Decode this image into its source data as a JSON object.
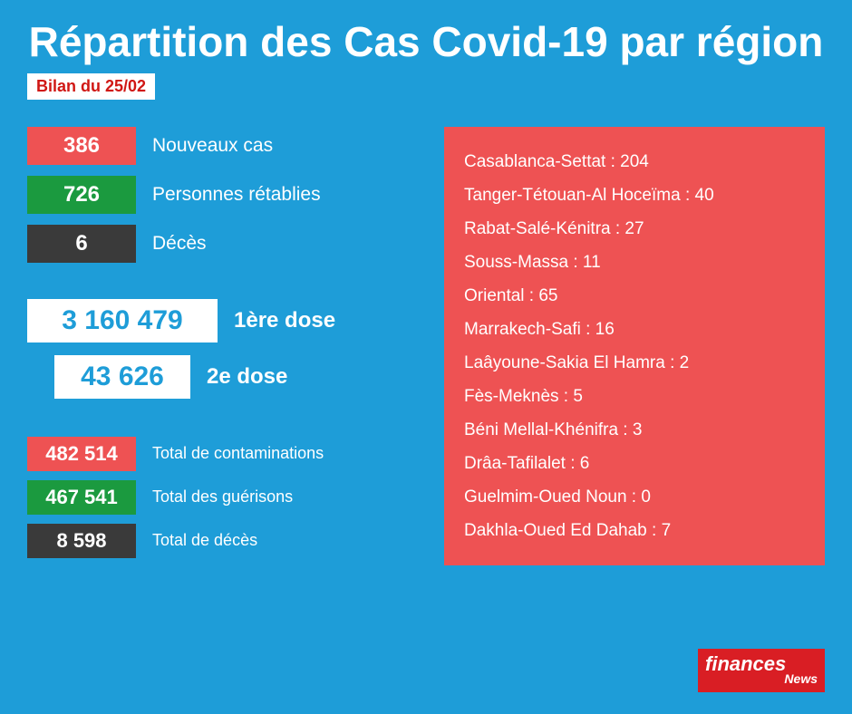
{
  "colors": {
    "background": "#1e9dd8",
    "white": "#ffffff",
    "red": "#ee5253",
    "green": "#1b9a3f",
    "dark": "#3a3a3a",
    "date_text": "#d01714",
    "logo_bg": "#d91e24"
  },
  "title": "Répartition des Cas Covid-19 par région",
  "date_badge": "Bilan du 25/02",
  "daily_stats": [
    {
      "value": "386",
      "label": "Nouveaux cas",
      "bg": "#ee5253",
      "fg": "#ffffff"
    },
    {
      "value": "726",
      "label": "Personnes rétablies",
      "bg": "#1b9a3f",
      "fg": "#ffffff"
    },
    {
      "value": "6",
      "label": "Décès",
      "bg": "#3a3a3a",
      "fg": "#ffffff"
    }
  ],
  "doses": [
    {
      "value": "3 160 479",
      "label": "1ère dose",
      "value_color": "#1e9dd8"
    },
    {
      "value": "43 626",
      "label": "2e dose",
      "value_color": "#1e9dd8"
    }
  ],
  "totals": [
    {
      "value": "482 514",
      "label": "Total de contaminations",
      "bg": "#ee5253",
      "fg": "#ffffff"
    },
    {
      "value": "467 541",
      "label": "Total des guérisons",
      "bg": "#1b9a3f",
      "fg": "#ffffff"
    },
    {
      "value": "8 598",
      "label": "Total de décès",
      "bg": "#3a3a3a",
      "fg": "#ffffff"
    }
  ],
  "regions": [
    {
      "name": "Casablanca-Settat",
      "value": "204"
    },
    {
      "name": "Tanger-Tétouan-Al Hoceïma",
      "value": "40"
    },
    {
      "name": "Rabat-Salé-Kénitra",
      "value": "27"
    },
    {
      "name": "Souss-Massa",
      "value": "11"
    },
    {
      "name": "Oriental",
      "value": "65"
    },
    {
      "name": "Marrakech-Safi",
      "value": "16"
    },
    {
      "name": "Laâyoune-Sakia El Hamra",
      "value": "2"
    },
    {
      "name": "Fès-Meknès",
      "value": "5"
    },
    {
      "name": "Béni Mellal-Khénifra",
      "value": "3"
    },
    {
      "name": "Drâa-Tafilalet",
      "value": "6"
    },
    {
      "name": "Guelmim-Oued Noun",
      "value": "0"
    },
    {
      "name": "Dakhla-Oued Ed Dahab",
      "value": "7"
    }
  ],
  "logo": {
    "main": "finances",
    "sub": "News"
  }
}
